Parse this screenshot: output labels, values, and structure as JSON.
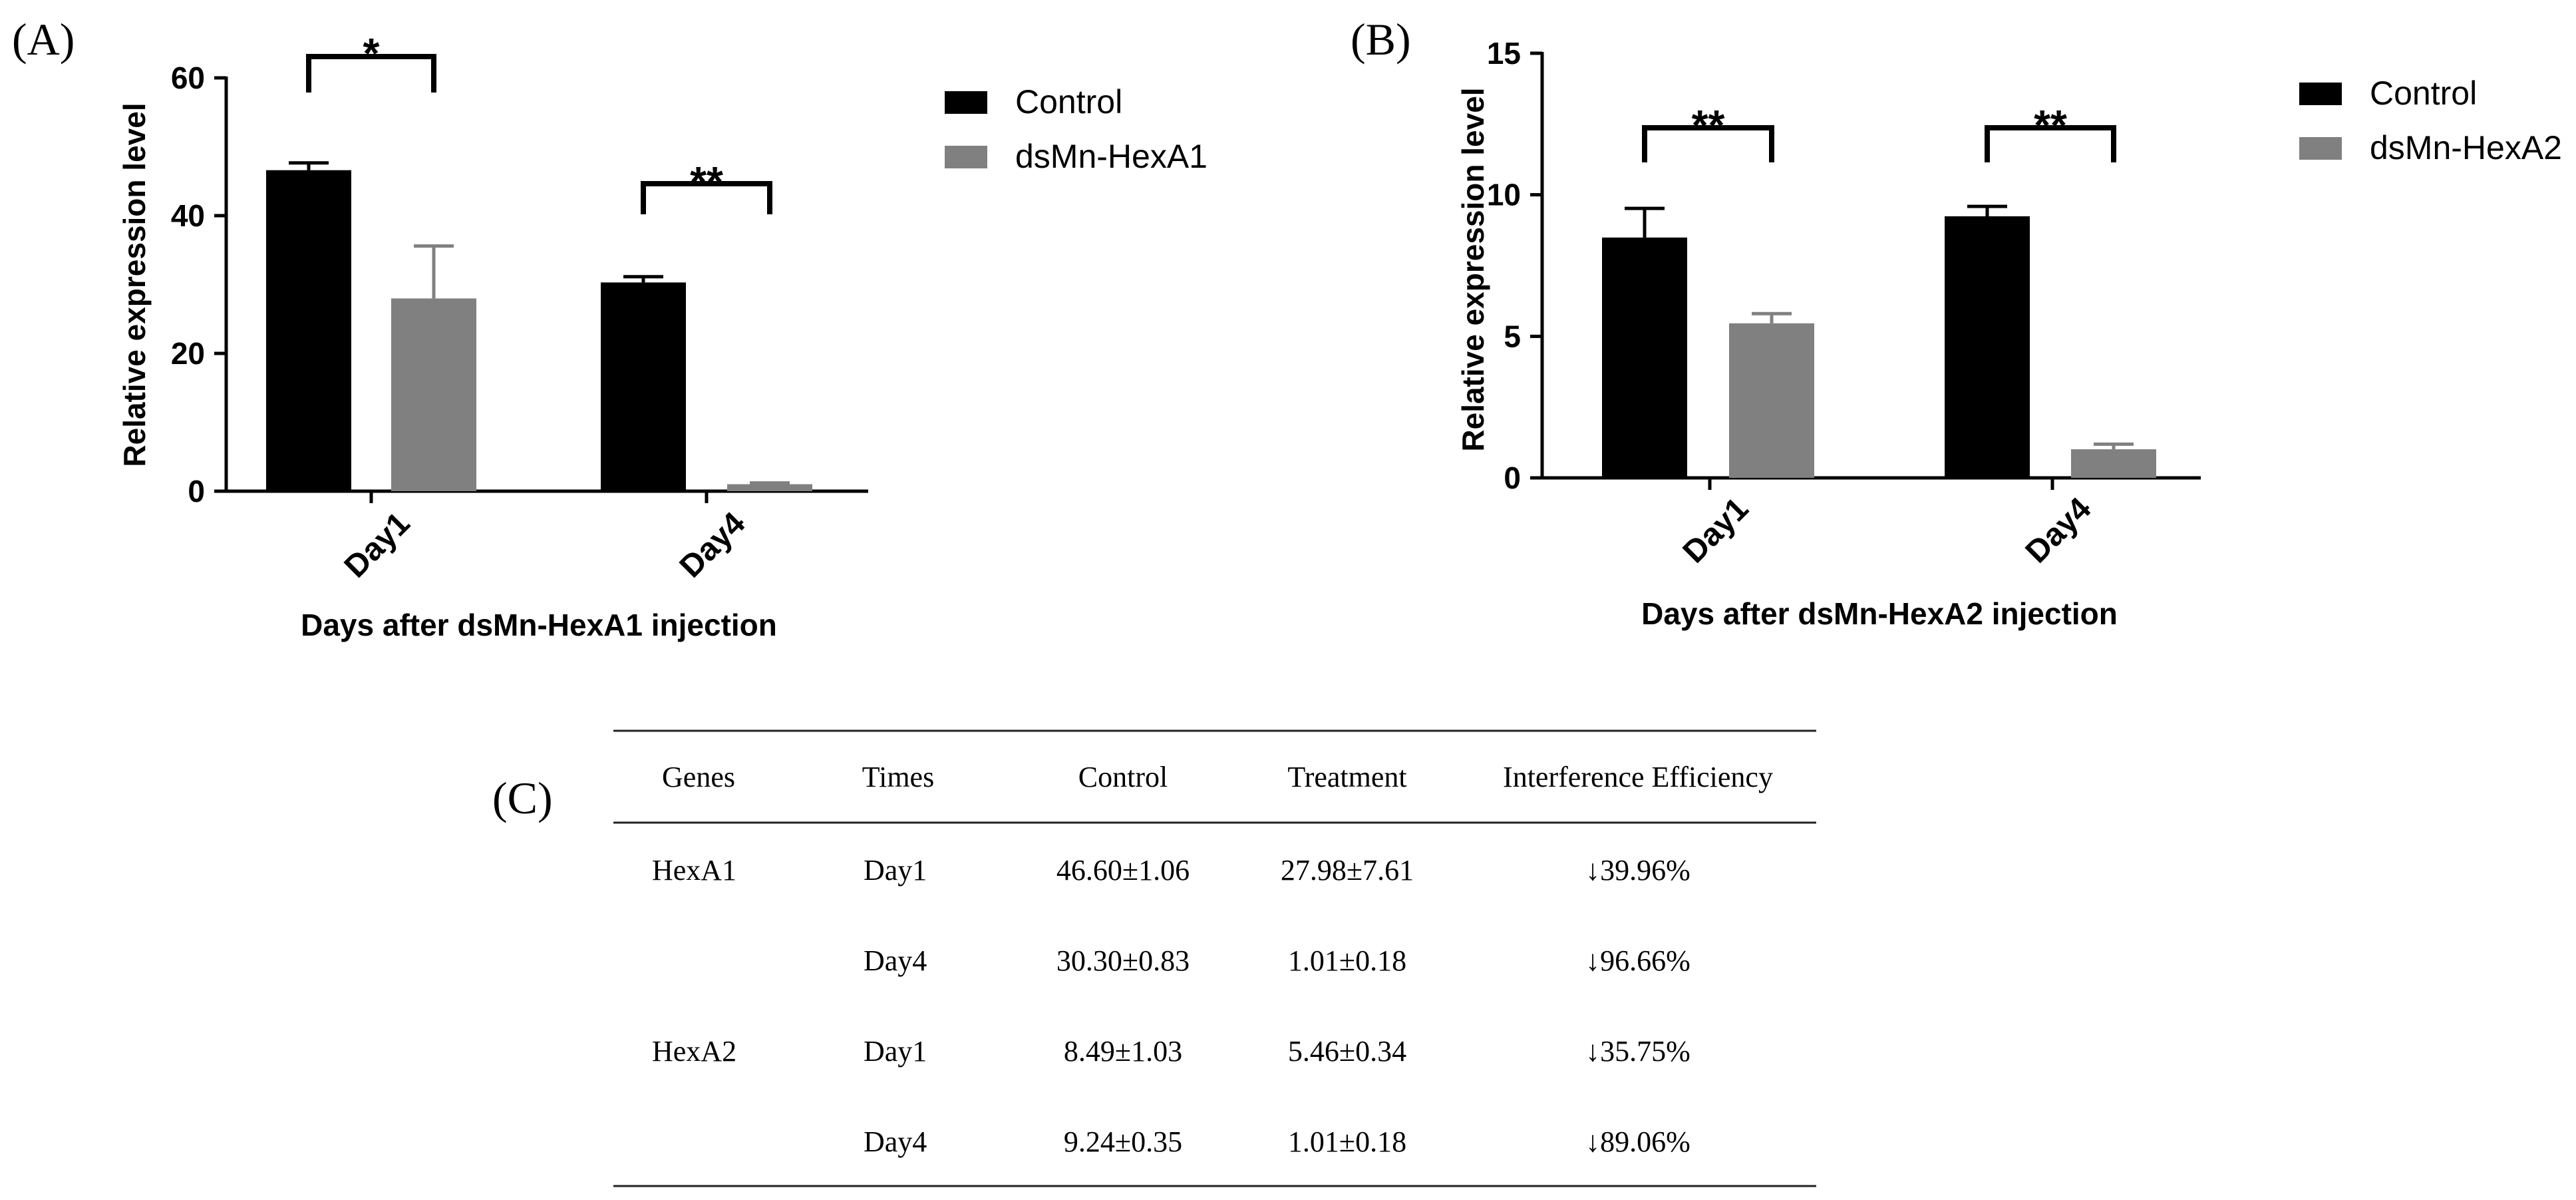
{
  "chart_data": [
    {
      "panel": "(A)",
      "type": "bar",
      "categories": [
        "Day1",
        "Day4"
      ],
      "series": [
        {
          "name": "Control",
          "values": [
            46.6,
            30.3
          ],
          "errors": [
            1.06,
            0.83
          ],
          "color": "#000000"
        },
        {
          "name": "dsMn-HexA1",
          "values": [
            27.98,
            1.01
          ],
          "errors": [
            7.61,
            0.18
          ],
          "color": "#808080"
        }
      ],
      "significance": [
        "*",
        "**"
      ],
      "xlabel": "Days after dsMn-HexA1 injection",
      "ylabel": "Relative expression level",
      "ylim": [
        0,
        60
      ],
      "yticks": [
        "0",
        "20",
        "40",
        "60"
      ],
      "tick_values": [
        0,
        20,
        40,
        60
      ],
      "legend_position": "top-right"
    },
    {
      "panel": "(B)",
      "type": "bar",
      "categories": [
        "Day1",
        "Day4"
      ],
      "series": [
        {
          "name": "Control",
          "values": [
            8.49,
            9.24
          ],
          "errors": [
            1.03,
            0.35
          ],
          "color": "#000000"
        },
        {
          "name": "dsMn-HexA2",
          "values": [
            5.46,
            1.01
          ],
          "errors": [
            0.34,
            0.18
          ],
          "color": "#808080"
        }
      ],
      "significance": [
        "**",
        "**"
      ],
      "xlabel": "Days after dsMn-HexA2 injection",
      "ylabel": "Relative expression level",
      "ylim": [
        0,
        15
      ],
      "yticks": [
        "0",
        "5",
        "10",
        "15"
      ],
      "tick_values": [
        0,
        5,
        10,
        15
      ],
      "legend_position": "top-right"
    },
    {
      "panel": "(C)",
      "type": "table",
      "columns": [
        "Genes",
        "Times",
        "Control",
        "Treatment",
        "Interference Efficiency"
      ],
      "rows": [
        [
          "HexA1",
          "Day1",
          "46.60±1.06",
          "27.98±7.61",
          "↓39.96%"
        ],
        [
          "",
          "Day4",
          "30.30±0.83",
          "1.01±0.18",
          "↓96.66%"
        ],
        [
          "HexA2",
          "Day1",
          "8.49±1.03",
          "5.46±0.34",
          "↓35.75%"
        ],
        [
          "",
          "Day4",
          "9.24±0.35",
          "1.01±0.18",
          "↓89.06%"
        ]
      ]
    }
  ]
}
